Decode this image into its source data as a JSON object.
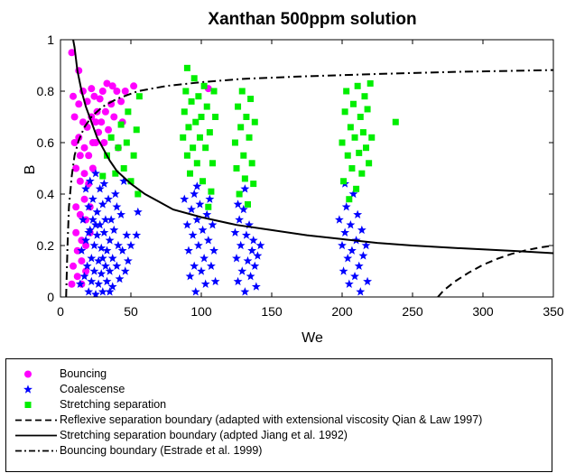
{
  "chart_data": {
    "type": "scatter",
    "title": "Xanthan 500ppm solution",
    "xlabel": "We",
    "ylabel": "B",
    "xlim": [
      0,
      350
    ],
    "ylim": [
      0,
      1
    ],
    "xticks": [
      "0",
      "50",
      "100",
      "150",
      "200",
      "250",
      "300",
      "350"
    ],
    "yticks": [
      "0",
      "0.2",
      "0.4",
      "0.6",
      "0.8",
      "1"
    ],
    "grid": false,
    "legend_position": "below-plot",
    "series": [
      {
        "name": "Bouncing",
        "kind": "points",
        "marker": "circle",
        "color": "#ff00ff",
        "points": [
          [
            8,
            0.05
          ],
          [
            9,
            0.12
          ],
          [
            8,
            0.95
          ],
          [
            9,
            0.78
          ],
          [
            10,
            0.7
          ],
          [
            10,
            0.6
          ],
          [
            11,
            0.5
          ],
          [
            11,
            0.35
          ],
          [
            11,
            0.25
          ],
          [
            12,
            0.18
          ],
          [
            12,
            0.08
          ],
          [
            13,
            0.88
          ],
          [
            13,
            0.75
          ],
          [
            13,
            0.62
          ],
          [
            14,
            0.55
          ],
          [
            14,
            0.45
          ],
          [
            14,
            0.32
          ],
          [
            15,
            0.22
          ],
          [
            15,
            0.14
          ],
          [
            15,
            0.05
          ],
          [
            16,
            0.8
          ],
          [
            16,
            0.68
          ],
          [
            17,
            0.58
          ],
          [
            17,
            0.48
          ],
          [
            17,
            0.38
          ],
          [
            18,
            0.3
          ],
          [
            18,
            0.2
          ],
          [
            18,
            0.1
          ],
          [
            19,
            0.76
          ],
          [
            19,
            0.66
          ],
          [
            20,
            0.55
          ],
          [
            20,
            0.44
          ],
          [
            21,
            0.35
          ],
          [
            21,
            0.25
          ],
          [
            22,
            0.81
          ],
          [
            22,
            0.7
          ],
          [
            23,
            0.6
          ],
          [
            23,
            0.5
          ],
          [
            24,
            0.78
          ],
          [
            25,
            0.68
          ],
          [
            25,
            0.6
          ],
          [
            26,
            0.72
          ],
          [
            27,
            0.64
          ],
          [
            28,
            0.77
          ],
          [
            29,
            0.68
          ],
          [
            30,
            0.8
          ],
          [
            31,
            0.6
          ],
          [
            32,
            0.72
          ],
          [
            33,
            0.83
          ],
          [
            34,
            0.65
          ],
          [
            36,
            0.75
          ],
          [
            37,
            0.82
          ],
          [
            38,
            0.7
          ],
          [
            40,
            0.8
          ],
          [
            41,
            0.58
          ],
          [
            43,
            0.76
          ],
          [
            44,
            0.68
          ],
          [
            46,
            0.8
          ],
          [
            52,
            0.82
          ],
          [
            105,
            0.81
          ]
        ]
      },
      {
        "name": "Coalescense",
        "kind": "points",
        "marker": "star",
        "color": "#0000ff",
        "points": [
          [
            14,
            0.05
          ],
          [
            15,
            0.18
          ],
          [
            16,
            0.3
          ],
          [
            17,
            0.08
          ],
          [
            18,
            0.42
          ],
          [
            18,
            0.22
          ],
          [
            19,
            0.12
          ],
          [
            20,
            0.35
          ],
          [
            20,
            0.02
          ],
          [
            21,
            0.45
          ],
          [
            21,
            0.26
          ],
          [
            22,
            0.15
          ],
          [
            22,
            0.06
          ],
          [
            23,
            0.38
          ],
          [
            23,
            0.3
          ],
          [
            24,
            0.2
          ],
          [
            24,
            0.1
          ],
          [
            25,
            0.48
          ],
          [
            25,
            0.01
          ],
          [
            26,
            0.33
          ],
          [
            26,
            0.24
          ],
          [
            27,
            0.14
          ],
          [
            27,
            0.05
          ],
          [
            28,
            0.42
          ],
          [
            28,
            0.28
          ],
          [
            29,
            0.19
          ],
          [
            29,
            0.09
          ],
          [
            30,
            0.36
          ],
          [
            30,
            0.02
          ],
          [
            31,
            0.25
          ],
          [
            31,
            0.44
          ],
          [
            32,
            0.12
          ],
          [
            32,
            0.3
          ],
          [
            33,
            0.18
          ],
          [
            33,
            0.06
          ],
          [
            34,
            0.38
          ],
          [
            35,
            0.22
          ],
          [
            35,
            0.1
          ],
          [
            36,
            0.3
          ],
          [
            37,
            0.15
          ],
          [
            37,
            0.04
          ],
          [
            38,
            0.26
          ],
          [
            39,
            0.4
          ],
          [
            40,
            0.12
          ],
          [
            41,
            0.2
          ],
          [
            42,
            0.07
          ],
          [
            43,
            0.32
          ],
          [
            44,
            0.18
          ],
          [
            45,
            0.45
          ],
          [
            46,
            0.1
          ],
          [
            47,
            0.24
          ],
          [
            48,
            0.14
          ],
          [
            50,
            0.2
          ],
          [
            55,
            0.33
          ],
          [
            54,
            0.24
          ],
          [
            30,
            0.15
          ],
          [
            25,
            0.28
          ],
          [
            35,
            0.02
          ],
          [
            40,
            0.35
          ],
          [
            20,
            0.25
          ],
          [
            88,
            0.38
          ],
          [
            90,
            0.28
          ],
          [
            91,
            0.18
          ],
          [
            92,
            0.08
          ],
          [
            93,
            0.34
          ],
          [
            94,
            0.24
          ],
          [
            95,
            0.4
          ],
          [
            95,
            0.12
          ],
          [
            96,
            0.02
          ],
          [
            97,
            0.3
          ],
          [
            98,
            0.2
          ],
          [
            99,
            0.36
          ],
          [
            100,
            0.1
          ],
          [
            101,
            0.26
          ],
          [
            102,
            0.15
          ],
          [
            103,
            0.05
          ],
          [
            104,
            0.32
          ],
          [
            105,
            0.22
          ],
          [
            106,
            0.38
          ],
          [
            107,
            0.12
          ],
          [
            108,
            0.28
          ],
          [
            109,
            0.18
          ],
          [
            110,
            0.06
          ],
          [
            97,
            0.43
          ],
          [
            124,
            0.25
          ],
          [
            125,
            0.15
          ],
          [
            126,
            0.06
          ],
          [
            127,
            0.3
          ],
          [
            128,
            0.2
          ],
          [
            129,
            0.1
          ],
          [
            130,
            0.34
          ],
          [
            131,
            0.02
          ],
          [
            132,
            0.24
          ],
          [
            133,
            0.14
          ],
          [
            134,
            0.28
          ],
          [
            135,
            0.08
          ],
          [
            136,
            0.18
          ],
          [
            137,
            0.22
          ],
          [
            138,
            0.12
          ],
          [
            139,
            0.04
          ],
          [
            140,
            0.16
          ],
          [
            142,
            0.2
          ],
          [
            126,
            0.36
          ],
          [
            131,
            0.42
          ],
          [
            198,
            0.3
          ],
          [
            200,
            0.2
          ],
          [
            201,
            0.1
          ],
          [
            202,
            0.25
          ],
          [
            203,
            0.35
          ],
          [
            204,
            0.15
          ],
          [
            205,
            0.05
          ],
          [
            206,
            0.28
          ],
          [
            207,
            0.18
          ],
          [
            208,
            0.4
          ],
          [
            209,
            0.08
          ],
          [
            210,
            0.22
          ],
          [
            211,
            0.32
          ],
          [
            212,
            0.12
          ],
          [
            213,
            0.02
          ],
          [
            214,
            0.26
          ],
          [
            215,
            0.16
          ],
          [
            217,
            0.2
          ],
          [
            218,
            0.06
          ],
          [
            202,
            0.44
          ]
        ]
      },
      {
        "name": "Stretching separation",
        "kind": "points",
        "marker": "square",
        "color": "#00ee00",
        "points": [
          [
            30,
            0.47
          ],
          [
            33,
            0.55
          ],
          [
            36,
            0.62
          ],
          [
            39,
            0.48
          ],
          [
            41,
            0.58
          ],
          [
            43,
            0.67
          ],
          [
            45,
            0.5
          ],
          [
            47,
            0.6
          ],
          [
            48,
            0.72
          ],
          [
            50,
            0.45
          ],
          [
            52,
            0.55
          ],
          [
            54,
            0.65
          ],
          [
            55,
            0.4
          ],
          [
            56,
            0.78
          ],
          [
            87,
            0.62
          ],
          [
            88,
            0.72
          ],
          [
            89,
            0.8
          ],
          [
            90,
            0.55
          ],
          [
            90,
            0.89
          ],
          [
            91,
            0.66
          ],
          [
            92,
            0.48
          ],
          [
            93,
            0.76
          ],
          [
            94,
            0.58
          ],
          [
            95,
            0.85
          ],
          [
            96,
            0.68
          ],
          [
            97,
            0.52
          ],
          [
            98,
            0.78
          ],
          [
            99,
            0.62
          ],
          [
            100,
            0.7
          ],
          [
            101,
            0.45
          ],
          [
            102,
            0.82
          ],
          [
            103,
            0.58
          ],
          [
            104,
            0.74
          ],
          [
            105,
            0.35
          ],
          [
            106,
            0.64
          ],
          [
            107,
            0.41
          ],
          [
            108,
            0.52
          ],
          [
            109,
            0.8
          ],
          [
            110,
            0.7
          ],
          [
            124,
            0.6
          ],
          [
            125,
            0.5
          ],
          [
            126,
            0.74
          ],
          [
            127,
            0.4
          ],
          [
            128,
            0.66
          ],
          [
            129,
            0.8
          ],
          [
            130,
            0.55
          ],
          [
            131,
            0.46
          ],
          [
            132,
            0.7
          ],
          [
            133,
            0.36
          ],
          [
            134,
            0.62
          ],
          [
            135,
            0.77
          ],
          [
            136,
            0.52
          ],
          [
            137,
            0.44
          ],
          [
            138,
            0.68
          ],
          [
            200,
            0.6
          ],
          [
            201,
            0.45
          ],
          [
            202,
            0.72
          ],
          [
            203,
            0.8
          ],
          [
            204,
            0.55
          ],
          [
            205,
            0.38
          ],
          [
            206,
            0.66
          ],
          [
            207,
            0.5
          ],
          [
            208,
            0.75
          ],
          [
            209,
            0.62
          ],
          [
            210,
            0.42
          ],
          [
            211,
            0.82
          ],
          [
            212,
            0.56
          ],
          [
            213,
            0.7
          ],
          [
            214,
            0.48
          ],
          [
            215,
            0.64
          ],
          [
            216,
            0.78
          ],
          [
            217,
            0.58
          ],
          [
            218,
            0.73
          ],
          [
            219,
            0.52
          ],
          [
            220,
            0.83
          ],
          [
            221,
            0.62
          ],
          [
            238,
            0.68
          ]
        ]
      },
      {
        "name": "Reflexive separation boundary (adapted with extensional viscosity Qian & Law 1997)",
        "kind": "line",
        "style": "dashed",
        "color": "#000000",
        "points": [
          [
            268,
            0
          ],
          [
            272,
            0.025
          ],
          [
            280,
            0.06
          ],
          [
            290,
            0.095
          ],
          [
            300,
            0.125
          ],
          [
            310,
            0.148
          ],
          [
            320,
            0.167
          ],
          [
            330,
            0.181
          ],
          [
            340,
            0.192
          ],
          [
            350,
            0.2
          ]
        ]
      },
      {
        "name": "Stretching separation boundary (adpted Jiang et al. 1992)",
        "kind": "line",
        "style": "solid",
        "color": "#000000",
        "points": [
          [
            9,
            1
          ],
          [
            10,
            0.97
          ],
          [
            12,
            0.88
          ],
          [
            15,
            0.8
          ],
          [
            18,
            0.74
          ],
          [
            22,
            0.68
          ],
          [
            26,
            0.62
          ],
          [
            30,
            0.58
          ],
          [
            35,
            0.53
          ],
          [
            40,
            0.49
          ],
          [
            50,
            0.44
          ],
          [
            60,
            0.4
          ],
          [
            70,
            0.37
          ],
          [
            80,
            0.34
          ],
          [
            100,
            0.31
          ],
          [
            125,
            0.28
          ],
          [
            150,
            0.26
          ],
          [
            175,
            0.24
          ],
          [
            200,
            0.225
          ],
          [
            225,
            0.21
          ],
          [
            250,
            0.2
          ],
          [
            275,
            0.192
          ],
          [
            300,
            0.185
          ],
          [
            325,
            0.178
          ],
          [
            350,
            0.17
          ]
        ]
      },
      {
        "name": "Bouncing boundary (Estrade et al. 1999)",
        "kind": "line",
        "style": "dashdot",
        "color": "#000000",
        "points": [
          [
            4,
            0
          ],
          [
            5,
            0.2
          ],
          [
            6,
            0.35
          ],
          [
            8,
            0.47
          ],
          [
            10,
            0.55
          ],
          [
            13,
            0.61
          ],
          [
            17,
            0.66
          ],
          [
            22,
            0.7
          ],
          [
            30,
            0.74
          ],
          [
            40,
            0.77
          ],
          [
            55,
            0.8
          ],
          [
            75,
            0.82
          ],
          [
            100,
            0.835
          ],
          [
            130,
            0.848
          ],
          [
            170,
            0.857
          ],
          [
            220,
            0.866
          ],
          [
            280,
            0.875
          ],
          [
            350,
            0.882
          ]
        ]
      }
    ]
  }
}
